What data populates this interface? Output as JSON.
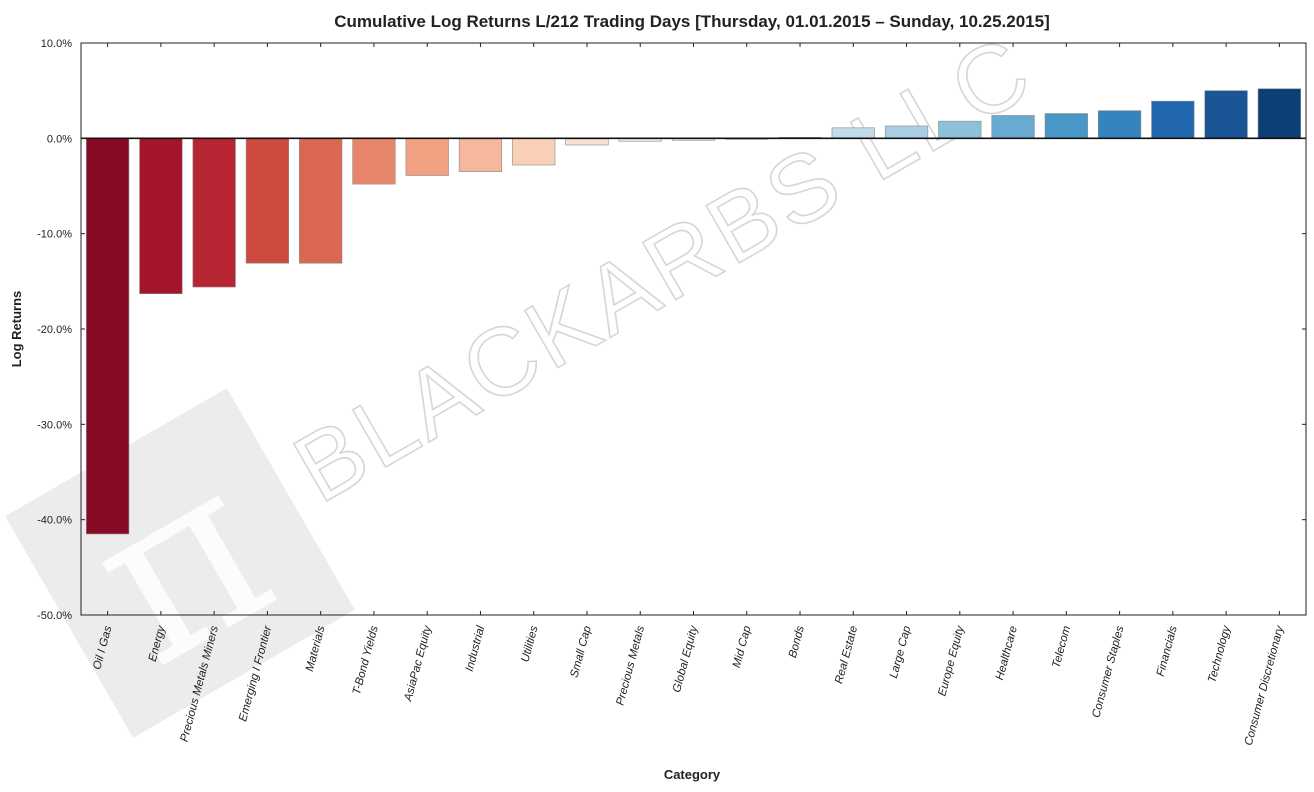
{
  "chart_data": {
    "type": "bar",
    "title": "Cumulative Log Returns L/212 Trading Days  [Thursday, 01.01.2015 – Sunday, 10.25.2015]",
    "xlabel": "Category",
    "ylabel": "Log Returns",
    "ylim": [
      -50,
      10
    ],
    "yticks": [
      "10.0%",
      "0.0%",
      "-10.0%",
      "-20.0%",
      "-30.0%",
      "-40.0%",
      "-50.0%"
    ],
    "ytick_values": [
      10,
      0,
      -10,
      -20,
      -30,
      -40,
      -50
    ],
    "categories": [
      "Oil I Gas",
      "Energy",
      "Precious Metals Miners",
      "Emerging I Frontier",
      "Materials",
      "T-Bond Yields",
      "AsiaPac Equity",
      "Industrial",
      "Utilities",
      "Small Cap",
      "Precious Metals",
      "Global Equity",
      "Mid Cap",
      "Bonds",
      "Real Estate",
      "Large Cap",
      "Europe Equity",
      "Healthcare",
      "Telecom",
      "Consumer Staples",
      "Financials",
      "Technology",
      "Consumer Discretionary"
    ],
    "values": [
      -41.5,
      -16.3,
      -15.6,
      -13.1,
      -13.1,
      -4.8,
      -3.9,
      -3.5,
      -2.8,
      -0.7,
      -0.3,
      -0.2,
      -0.1,
      0.1,
      1.1,
      1.3,
      1.8,
      2.4,
      2.6,
      2.9,
      3.9,
      5.0,
      5.2
    ],
    "colors": [
      "#870a25",
      "#a6142c",
      "#b82532",
      "#cc4a40",
      "#da6752",
      "#e8866b",
      "#f2a282",
      "#f6b89d",
      "#f9cfb8",
      "#f6dfd3",
      "#eee8e4",
      "#e9eaeb",
      "#e5e8eb",
      "#e1e9f0",
      "#c2dbea",
      "#a9cee4",
      "#8dc0dd",
      "#6aaad2",
      "#4997c6",
      "#3584bd",
      "#2268af",
      "#1a5596",
      "#0c3f75"
    ],
    "grid": false,
    "watermark": "BLACKARBS LLC"
  }
}
